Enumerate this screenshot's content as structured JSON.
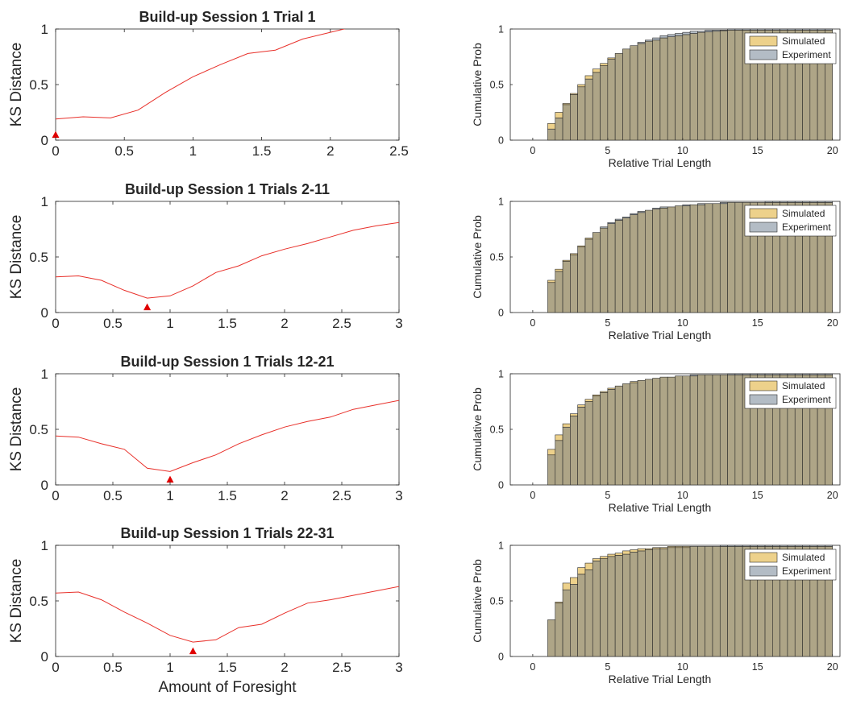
{
  "colors": {
    "ks_line": "#e8302a",
    "min_marker": "#e00000",
    "simulated": "#edd18b",
    "experiment": "#b3bcc5",
    "overlap": "#aea587",
    "axis": "#262626"
  },
  "chart_data": [
    {
      "type": "line",
      "title": "Build-up Session 1 Trial 1",
      "xlabel": "",
      "ylabel": "KS Distance",
      "xlim": [
        0,
        2.5
      ],
      "ylim": [
        0,
        1
      ],
      "xticks": [
        0,
        0.5,
        1,
        1.5,
        2,
        2.5
      ],
      "xtick_labels": [
        "0",
        "0.5",
        "1",
        "1.5",
        "2",
        "2.5"
      ],
      "yticks": [
        0,
        0.5,
        1
      ],
      "ytick_labels": [
        "0",
        "0.5",
        "1"
      ],
      "series": [
        {
          "x": [
            0,
            0.2,
            0.4,
            0.6,
            0.8,
            1.0,
            1.2,
            1.4,
            1.6,
            1.8,
            2.0,
            2.2
          ],
          "y": [
            0.19,
            0.21,
            0.2,
            0.27,
            0.43,
            0.57,
            0.68,
            0.78,
            0.81,
            0.91,
            0.97,
            1.03
          ]
        }
      ],
      "min_marker": {
        "x": 0,
        "y": 0.05
      }
    },
    {
      "type": "bar",
      "title": "",
      "xlabel": "Relative Trial Length",
      "ylabel": "Cumulative Prob",
      "xlim": [
        -1.5,
        20.5
      ],
      "ylim": [
        0,
        1
      ],
      "xticks": [
        0,
        5,
        10,
        15,
        20
      ],
      "xtick_labels": [
        "0",
        "5",
        "10",
        "15",
        "20"
      ],
      "yticks": [
        0,
        0.5,
        1
      ],
      "ytick_labels": [
        "0",
        "0.5",
        "1"
      ],
      "legend": {
        "position": "top-right",
        "entries": [
          "Simulated",
          "Experiment"
        ]
      },
      "bin_start": 1,
      "bin_width": 0.5,
      "series": [
        {
          "name": "Simulated",
          "values": [
            0.15,
            0.25,
            0.33,
            0.42,
            0.5,
            0.58,
            0.64,
            0.69,
            0.74,
            0.78,
            0.82,
            0.85,
            0.87,
            0.89,
            0.9,
            0.92,
            0.93,
            0.94,
            0.95,
            0.96,
            0.97,
            0.975,
            0.98,
            0.985,
            0.99,
            0.99,
            0.99,
            0.99,
            0.99,
            0.99,
            0.99,
            0.99,
            0.99,
            0.99,
            0.99,
            0.99,
            0.99,
            0.99
          ]
        },
        {
          "name": "Experiment",
          "values": [
            0.1,
            0.2,
            0.32,
            0.41,
            0.48,
            0.55,
            0.61,
            0.67,
            0.73,
            0.78,
            0.82,
            0.85,
            0.88,
            0.9,
            0.92,
            0.94,
            0.95,
            0.96,
            0.97,
            0.98,
            0.98,
            0.99,
            0.99,
            0.99,
            1.0,
            1.0,
            1.0,
            1.0,
            1.0,
            1.0,
            1.0,
            1.0,
            1.0,
            1.0,
            1.0,
            1.0,
            1.0,
            1.0
          ]
        }
      ]
    },
    {
      "type": "line",
      "title": "Build-up Session 1 Trials 2-11",
      "xlabel": "",
      "ylabel": "KS Distance",
      "xlim": [
        0,
        3
      ],
      "ylim": [
        0,
        1
      ],
      "xticks": [
        0,
        0.5,
        1,
        1.5,
        2,
        2.5,
        3
      ],
      "xtick_labels": [
        "0",
        "0.5",
        "1",
        "1.5",
        "2",
        "2.5",
        "3"
      ],
      "yticks": [
        0,
        0.5,
        1
      ],
      "ytick_labels": [
        "0",
        "0.5",
        "1"
      ],
      "series": [
        {
          "x": [
            0,
            0.2,
            0.4,
            0.6,
            0.8,
            1.0,
            1.2,
            1.4,
            1.6,
            1.8,
            2.0,
            2.2,
            2.4,
            2.6,
            2.8,
            3.0
          ],
          "y": [
            0.32,
            0.33,
            0.29,
            0.2,
            0.13,
            0.15,
            0.24,
            0.36,
            0.42,
            0.51,
            0.57,
            0.62,
            0.68,
            0.74,
            0.78,
            0.81
          ]
        }
      ],
      "min_marker": {
        "x": 0.8,
        "y": 0.05
      }
    },
    {
      "type": "bar",
      "title": "",
      "xlabel": "Relative Trial Length",
      "ylabel": "Cumulative Prob",
      "xlim": [
        -1.5,
        20.5
      ],
      "ylim": [
        0,
        1
      ],
      "xticks": [
        0,
        5,
        10,
        15,
        20
      ],
      "xtick_labels": [
        "0",
        "5",
        "10",
        "15",
        "20"
      ],
      "yticks": [
        0,
        0.5,
        1
      ],
      "ytick_labels": [
        "0",
        "0.5",
        "1"
      ],
      "legend": {
        "position": "top-right",
        "entries": [
          "Simulated",
          "Experiment"
        ]
      },
      "bin_start": 1,
      "bin_width": 0.5,
      "series": [
        {
          "name": "Simulated",
          "values": [
            0.29,
            0.39,
            0.47,
            0.53,
            0.6,
            0.67,
            0.72,
            0.76,
            0.8,
            0.83,
            0.85,
            0.88,
            0.9,
            0.92,
            0.93,
            0.94,
            0.95,
            0.96,
            0.96,
            0.97,
            0.97,
            0.98,
            0.98,
            0.98,
            0.99,
            0.99,
            0.99,
            0.99,
            0.99,
            0.99,
            0.99,
            0.99,
            0.99,
            0.99,
            0.99,
            0.99,
            0.99,
            0.99
          ]
        },
        {
          "name": "Experiment",
          "values": [
            0.27,
            0.37,
            0.46,
            0.52,
            0.59,
            0.66,
            0.72,
            0.77,
            0.81,
            0.84,
            0.86,
            0.89,
            0.91,
            0.92,
            0.94,
            0.95,
            0.95,
            0.96,
            0.97,
            0.97,
            0.98,
            0.98,
            0.98,
            0.99,
            0.99,
            0.99,
            0.99,
            0.99,
            0.99,
            1.0,
            1.0,
            1.0,
            1.0,
            1.0,
            1.0,
            1.0,
            1.0,
            1.0
          ]
        }
      ]
    },
    {
      "type": "line",
      "title": "Build-up Session 1 Trials 12-21",
      "xlabel": "",
      "ylabel": "KS Distance",
      "xlim": [
        0,
        3
      ],
      "ylim": [
        0,
        1
      ],
      "xticks": [
        0,
        0.5,
        1,
        1.5,
        2,
        2.5,
        3
      ],
      "xtick_labels": [
        "0",
        "0.5",
        "1",
        "1.5",
        "2",
        "2.5",
        "3"
      ],
      "yticks": [
        0,
        0.5,
        1
      ],
      "ytick_labels": [
        "0",
        "0.5",
        "1"
      ],
      "series": [
        {
          "x": [
            0,
            0.2,
            0.4,
            0.6,
            0.8,
            1.0,
            1.2,
            1.4,
            1.6,
            1.8,
            2.0,
            2.2,
            2.4,
            2.6,
            2.8,
            3.0
          ],
          "y": [
            0.44,
            0.43,
            0.37,
            0.32,
            0.15,
            0.12,
            0.2,
            0.27,
            0.37,
            0.45,
            0.52,
            0.57,
            0.61,
            0.68,
            0.72,
            0.76
          ]
        }
      ],
      "min_marker": {
        "x": 1.0,
        "y": 0.05
      }
    },
    {
      "type": "bar",
      "title": "",
      "xlabel": "Relative Trial Length",
      "ylabel": "Cumulative Prob",
      "xlim": [
        -1.5,
        20.5
      ],
      "ylim": [
        0,
        1
      ],
      "xticks": [
        0,
        5,
        10,
        15,
        20
      ],
      "xtick_labels": [
        "0",
        "5",
        "10",
        "15",
        "20"
      ],
      "yticks": [
        0,
        0.5,
        1
      ],
      "ytick_labels": [
        "0",
        "0.5",
        "1"
      ],
      "legend": {
        "position": "top-right",
        "entries": [
          "Simulated",
          "Experiment"
        ]
      },
      "bin_start": 1,
      "bin_width": 0.5,
      "series": [
        {
          "name": "Simulated",
          "values": [
            0.32,
            0.45,
            0.55,
            0.64,
            0.72,
            0.77,
            0.81,
            0.84,
            0.87,
            0.89,
            0.91,
            0.93,
            0.94,
            0.95,
            0.96,
            0.97,
            0.97,
            0.98,
            0.98,
            0.98,
            0.99,
            0.99,
            0.99,
            0.99,
            0.99,
            0.99,
            0.99,
            0.99,
            0.99,
            0.99,
            0.99,
            0.99,
            0.99,
            0.99,
            0.99,
            0.99,
            0.99,
            0.99
          ]
        },
        {
          "name": "Experiment",
          "values": [
            0.27,
            0.4,
            0.52,
            0.62,
            0.7,
            0.75,
            0.8,
            0.83,
            0.86,
            0.89,
            0.91,
            0.92,
            0.94,
            0.95,
            0.96,
            0.97,
            0.97,
            0.98,
            0.98,
            0.99,
            0.99,
            0.99,
            0.99,
            0.99,
            1.0,
            1.0,
            1.0,
            1.0,
            1.0,
            1.0,
            1.0,
            1.0,
            1.0,
            1.0,
            1.0,
            1.0,
            1.0,
            1.0
          ]
        }
      ]
    },
    {
      "type": "line",
      "title": "Build-up Session 1 Trials 22-31",
      "xlabel": "Amount of Foresight",
      "ylabel": "KS Distance",
      "xlim": [
        0,
        3
      ],
      "ylim": [
        0,
        1
      ],
      "xticks": [
        0,
        0.5,
        1,
        1.5,
        2,
        2.5,
        3
      ],
      "xtick_labels": [
        "0",
        "0.5",
        "1",
        "1.5",
        "2",
        "2.5",
        "3"
      ],
      "yticks": [
        0,
        0.5,
        1
      ],
      "ytick_labels": [
        "0",
        "0.5",
        "1"
      ],
      "series": [
        {
          "x": [
            0,
            0.2,
            0.4,
            0.6,
            0.8,
            1.0,
            1.2,
            1.4,
            1.6,
            1.8,
            2.0,
            2.2,
            2.4,
            2.6,
            2.8,
            3.0
          ],
          "y": [
            0.57,
            0.58,
            0.51,
            0.4,
            0.3,
            0.19,
            0.13,
            0.15,
            0.26,
            0.29,
            0.39,
            0.48,
            0.51,
            0.55,
            0.59,
            0.63
          ]
        }
      ],
      "min_marker": {
        "x": 1.2,
        "y": 0.05
      }
    },
    {
      "type": "bar",
      "title": "",
      "xlabel": "Relative Trial Length",
      "ylabel": "Cumulative Prob",
      "xlim": [
        -1.5,
        20.5
      ],
      "ylim": [
        0,
        1
      ],
      "xticks": [
        0,
        5,
        10,
        15,
        20
      ],
      "xtick_labels": [
        "0",
        "5",
        "10",
        "15",
        "20"
      ],
      "yticks": [
        0,
        0.5,
        1
      ],
      "ytick_labels": [
        "0",
        "0.5",
        "1"
      ],
      "legend": {
        "position": "top-right",
        "entries": [
          "Simulated",
          "Experiment"
        ]
      },
      "bin_start": 1,
      "bin_width": 0.5,
      "series": [
        {
          "name": "Simulated",
          "values": [
            0.33,
            0.49,
            0.66,
            0.71,
            0.8,
            0.84,
            0.88,
            0.9,
            0.92,
            0.93,
            0.95,
            0.96,
            0.97,
            0.97,
            0.98,
            0.98,
            0.99,
            0.99,
            0.99,
            0.99,
            0.99,
            0.99,
            0.99,
            0.99,
            0.99,
            0.99,
            0.99,
            0.99,
            0.99,
            0.99,
            0.99,
            0.99,
            0.99,
            0.99,
            0.99,
            0.99,
            0.99,
            0.99
          ]
        },
        {
          "name": "Experiment",
          "values": [
            0.33,
            0.48,
            0.6,
            0.65,
            0.74,
            0.78,
            0.86,
            0.88,
            0.9,
            0.91,
            0.92,
            0.94,
            0.95,
            0.96,
            0.97,
            0.97,
            0.98,
            0.98,
            0.98,
            0.99,
            0.99,
            0.99,
            0.99,
            1.0,
            1.0,
            1.0,
            1.0,
            1.0,
            1.0,
            1.0,
            1.0,
            1.0,
            1.0,
            1.0,
            1.0,
            1.0,
            1.0,
            1.0
          ]
        }
      ]
    }
  ]
}
